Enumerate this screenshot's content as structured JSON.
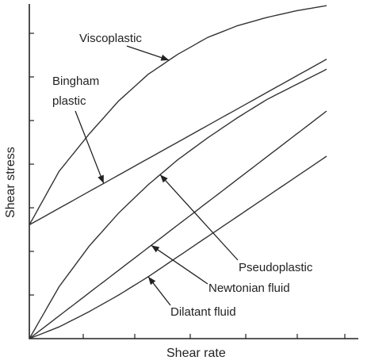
{
  "chart_data": {
    "type": "line",
    "xlabel": "Shear rate",
    "ylabel": "Shear stress",
    "xlim": [
      0,
      10
    ],
    "ylim": [
      0,
      10
    ],
    "x_ticks": [
      1,
      2,
      3,
      4,
      5,
      6
    ],
    "y_ticks": [
      1,
      2,
      3,
      4,
      5,
      6,
      7
    ],
    "series": [
      {
        "name": "Viscoplastic",
        "x": [
          0,
          1,
          2,
          3,
          4,
          5,
          6,
          7,
          8,
          9,
          10
        ],
        "y": [
          3.4,
          5.0,
          6.1,
          7.1,
          7.9,
          8.5,
          9.0,
          9.35,
          9.6,
          9.8,
          9.95
        ]
      },
      {
        "name": "Bingham plastic",
        "x": [
          0,
          10
        ],
        "y": [
          3.4,
          8.35
        ]
      },
      {
        "name": "Pseudoplastic",
        "x": [
          0,
          1,
          2,
          3,
          4,
          5,
          6,
          7,
          8,
          9,
          10
        ],
        "y": [
          0,
          1.55,
          2.75,
          3.75,
          4.6,
          5.35,
          6.0,
          6.6,
          7.15,
          7.6,
          8.05
        ]
      },
      {
        "name": "Newtonian fluid",
        "x": [
          0,
          10
        ],
        "y": [
          0,
          6.8
        ]
      },
      {
        "name": "Dilatant fluid",
        "x": [
          0,
          1,
          2,
          3,
          4,
          5,
          6,
          7,
          8,
          9,
          10
        ],
        "y": [
          0,
          0.35,
          0.8,
          1.3,
          1.85,
          2.45,
          3.05,
          3.65,
          4.25,
          4.85,
          5.45
        ]
      }
    ],
    "annotations": [
      {
        "text": "Viscoplastic",
        "series": 0,
        "x": 4.7
      },
      {
        "text": "Bingham plastic",
        "series": 1,
        "x": 2.5
      },
      {
        "text": "Pseudoplastic",
        "series": 2,
        "x": 4.4
      },
      {
        "text": "Newtonian fluid",
        "series": 3,
        "x": 4.1
      },
      {
        "text": "Dilatant fluid",
        "series": 4,
        "x": 4.0
      }
    ]
  }
}
